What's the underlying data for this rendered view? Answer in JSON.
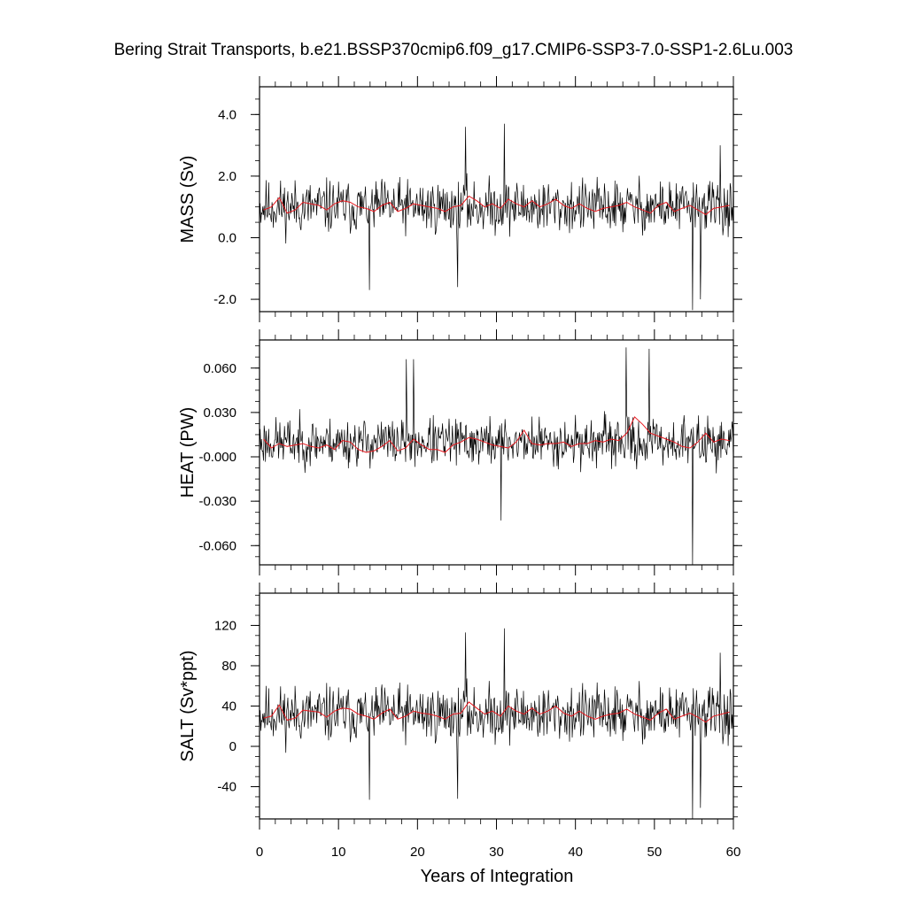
{
  "title": "Bering Strait Transports, b.e21.BSSP370cmip6.f09_g17.CMIP6-SSP3-7.0-SSP1-2.6Lu.003",
  "xlabel": "Years of Integration",
  "colors": {
    "monthly": "#000000",
    "annual": "#e8191f",
    "axes": "#000000",
    "background": "#ffffff"
  },
  "chart_data": [
    {
      "type": "line",
      "ylabel": "MASS (Sv)",
      "xlim": [
        0,
        60
      ],
      "ylim": [
        -2.4,
        4.9
      ],
      "yticks": [
        -2.0,
        0.0,
        2.0,
        4.0
      ],
      "ytick_labels": [
        "-2.0",
        "0.0",
        "2.0",
        "4.0"
      ],
      "xticks": [
        0,
        10,
        20,
        30,
        40,
        50,
        60
      ],
      "xtick_labels": [
        "0",
        "10",
        "20",
        "30",
        "40",
        "50",
        "60"
      ],
      "series": [
        {
          "kind": "monthly",
          "mean": 1.0,
          "spread": 1.3,
          "seed": 11,
          "spikes": [
            [
              25.1,
              -1.6
            ],
            [
              26.1,
              3.6
            ],
            [
              31.0,
              3.7
            ],
            [
              54.8,
              -2.35
            ],
            [
              55.8,
              -2.0
            ],
            [
              13.9,
              -1.7
            ],
            [
              58.3,
              3.0
            ]
          ]
        },
        {
          "kind": "annual",
          "x": [
            0.5,
            1.5,
            2.5,
            3.5,
            4.5,
            5.5,
            6.5,
            7.5,
            8.5,
            9.5,
            10.5,
            11.5,
            12.5,
            13.5,
            14.5,
            15.5,
            16.5,
            17.5,
            18.5,
            19.5,
            20.5,
            21.5,
            22.5,
            23.5,
            24.5,
            25.5,
            26.5,
            27.5,
            28.5,
            29.5,
            30.5,
            31.5,
            32.5,
            33.5,
            34.5,
            35.5,
            36.5,
            37.5,
            38.5,
            39.5,
            40.5,
            41.5,
            42.5,
            43.5,
            44.5,
            45.5,
            46.5,
            47.5,
            48.5,
            49.5,
            50.5,
            51.5,
            52.5,
            53.5,
            54.5,
            55.5,
            56.5,
            57.5,
            58.5,
            59.5
          ],
          "y": [
            0.9,
            1.0,
            1.3,
            0.8,
            0.9,
            1.15,
            1.1,
            1.05,
            0.9,
            1.1,
            1.2,
            1.15,
            1.0,
            0.95,
            0.85,
            1.05,
            1.15,
            0.85,
            0.95,
            1.1,
            1.05,
            1.0,
            0.95,
            0.85,
            1.0,
            1.05,
            1.35,
            1.2,
            1.0,
            1.1,
            0.95,
            1.25,
            1.1,
            1.0,
            1.2,
            1.0,
            1.1,
            1.25,
            1.05,
            0.95,
            1.1,
            0.95,
            0.85,
            0.95,
            1.0,
            1.05,
            1.15,
            1.0,
            0.9,
            0.8,
            1.05,
            1.15,
            0.85,
            0.95,
            1.05,
            0.9,
            0.75,
            0.95,
            1.0,
            1.05
          ]
        }
      ]
    },
    {
      "type": "line",
      "ylabel": "HEAT (PW)",
      "xlim": [
        0,
        60
      ],
      "ylim": [
        -0.073,
        0.079
      ],
      "yticks": [
        -0.06,
        -0.03,
        0.0,
        0.03,
        0.06
      ],
      "ytick_labels": [
        "-0.060",
        "-0.030",
        "-0.000",
        "0.030",
        "0.060"
      ],
      "xticks": [
        0,
        10,
        20,
        30,
        40,
        50,
        60
      ],
      "xtick_labels": [
        "0",
        "10",
        "20",
        "30",
        "40",
        "50",
        "60"
      ],
      "series": [
        {
          "kind": "monthly",
          "mean": 0.01,
          "spread": 0.024,
          "seed": 23,
          "spikes": [
            [
              30.6,
              -0.043
            ],
            [
              54.8,
              -0.073
            ],
            [
              46.4,
              0.074
            ],
            [
              49.3,
              0.073
            ],
            [
              18.6,
              0.066
            ],
            [
              19.5,
              0.066
            ]
          ]
        },
        {
          "kind": "annual",
          "x": [
            0.5,
            1.5,
            2.5,
            3.5,
            4.5,
            5.5,
            6.5,
            7.5,
            8.5,
            9.5,
            10.5,
            11.5,
            12.5,
            13.5,
            14.5,
            15.5,
            16.5,
            17.5,
            18.5,
            19.5,
            20.5,
            21.5,
            22.5,
            23.5,
            24.5,
            25.5,
            26.5,
            27.5,
            28.5,
            29.5,
            30.5,
            31.5,
            32.5,
            33.5,
            34.5,
            35.5,
            36.5,
            37.5,
            38.5,
            39.5,
            40.5,
            41.5,
            42.5,
            43.5,
            44.5,
            45.5,
            46.5,
            47.5,
            48.5,
            49.5,
            50.5,
            51.5,
            52.5,
            53.5,
            54.5,
            55.5,
            56.5,
            57.5,
            58.5,
            59.5
          ],
          "y": [
            0.012,
            0.006,
            0.009,
            0.007,
            0.008,
            0.009,
            0.007,
            0.006,
            0.008,
            0.005,
            0.011,
            0.01,
            0.005,
            0.003,
            0.004,
            0.007,
            0.011,
            0.004,
            0.006,
            0.012,
            0.008,
            0.005,
            0.005,
            0.003,
            0.008,
            0.01,
            0.013,
            0.012,
            0.01,
            0.008,
            0.007,
            0.006,
            0.01,
            0.018,
            0.009,
            0.008,
            0.009,
            0.009,
            0.01,
            0.007,
            0.009,
            0.009,
            0.011,
            0.01,
            0.012,
            0.011,
            0.016,
            0.027,
            0.022,
            0.016,
            0.014,
            0.012,
            0.01,
            0.007,
            0.006,
            0.01,
            0.016,
            0.01,
            0.012,
            0.011
          ]
        }
      ]
    },
    {
      "type": "line",
      "ylabel": "SALT (Sv*ppt)",
      "xlim": [
        0,
        60
      ],
      "ylim": [
        -72,
        152
      ],
      "yticks": [
        -40,
        0,
        40,
        80,
        120
      ],
      "ytick_labels": [
        "-40",
        "0",
        "40",
        "80",
        "120"
      ],
      "xticks": [
        0,
        10,
        20,
        30,
        40,
        50,
        60
      ],
      "xtick_labels": [
        "0",
        "10",
        "20",
        "30",
        "40",
        "50",
        "60"
      ],
      "series": [
        {
          "kind": "monthly",
          "mean": 32,
          "spread": 42,
          "seed": 11,
          "spikes": [
            [
              25.1,
              -52
            ],
            [
              26.1,
              113
            ],
            [
              31.0,
              117
            ],
            [
              54.8,
              -72
            ],
            [
              55.8,
              -61
            ],
            [
              13.9,
              -53
            ],
            [
              58.3,
              93
            ]
          ]
        },
        {
          "kind": "annual",
          "x": [
            0.5,
            1.5,
            2.5,
            3.5,
            4.5,
            5.5,
            6.5,
            7.5,
            8.5,
            9.5,
            10.5,
            11.5,
            12.5,
            13.5,
            14.5,
            15.5,
            16.5,
            17.5,
            18.5,
            19.5,
            20.5,
            21.5,
            22.5,
            23.5,
            24.5,
            25.5,
            26.5,
            27.5,
            28.5,
            29.5,
            30.5,
            31.5,
            32.5,
            33.5,
            34.5,
            35.5,
            36.5,
            37.5,
            38.5,
            39.5,
            40.5,
            41.5,
            42.5,
            43.5,
            44.5,
            45.5,
            46.5,
            47.5,
            48.5,
            49.5,
            50.5,
            51.5,
            52.5,
            53.5,
            54.5,
            55.5,
            56.5,
            57.5,
            58.5,
            59.5
          ],
          "y": [
            28,
            30,
            41,
            26,
            28,
            36,
            35,
            34,
            29,
            35,
            38,
            37,
            32,
            30,
            27,
            33,
            37,
            27,
            30,
            35,
            33,
            32,
            30,
            27,
            32,
            33,
            44,
            38,
            32,
            35,
            30,
            40,
            35,
            32,
            38,
            32,
            35,
            40,
            33,
            30,
            35,
            30,
            27,
            30,
            32,
            33,
            37,
            32,
            29,
            26,
            33,
            37,
            27,
            30,
            33,
            29,
            24,
            30,
            32,
            34
          ]
        }
      ]
    }
  ]
}
